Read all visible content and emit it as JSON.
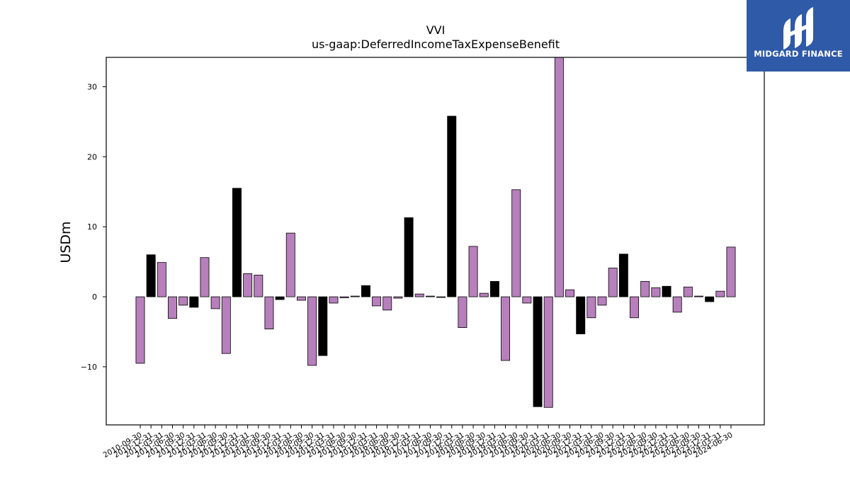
{
  "brand": {
    "name": "MIDGARD FINANCE",
    "bg_color": "#2f5aa8"
  },
  "chart_data": {
    "type": "bar",
    "title": "VVI",
    "subtitle": "us-gaap:DeferredIncomeTaxExpenseBenefit",
    "xlabel": "",
    "ylabel": "USDm",
    "ylim": [
      -18.3,
      34.2
    ],
    "yticks": [
      -10,
      0,
      10,
      20,
      30
    ],
    "ytick_labels": [
      "−10",
      "0",
      "10",
      "20",
      "30"
    ],
    "grid": false,
    "colors": {
      "quarter": "#b77fbc",
      "annual": "#000000"
    },
    "categories": [
      "2010-09-30",
      "2010-12-31",
      "2011-03-31",
      "2011-06-30",
      "2011-09-30",
      "2011-12-31",
      "2012-03-31",
      "2012-06-30",
      "2012-09-30",
      "2012-12-31",
      "2013-03-31",
      "2013-06-30",
      "2013-09-30",
      "2013-12-31",
      "2014-03-31",
      "2014-06-30",
      "2014-09-30",
      "2014-12-31",
      "2015-03-31",
      "2015-06-30",
      "2015-09-30",
      "2015-12-31",
      "2016-03-31",
      "2016-06-30",
      "2016-09-30",
      "2016-12-31",
      "2017-03-31",
      "2017-06-30",
      "2017-09-30",
      "2017-12-31",
      "2018-03-31",
      "2018-06-30",
      "2018-09-30",
      "2018-12-31",
      "2019-03-31",
      "2019-06-30",
      "2019-09-30",
      "2019-12-31",
      "2020-03-31",
      "2020-06-30",
      "2020-09-30",
      "2020-12-31",
      "2021-03-31",
      "2021-06-30",
      "2021-09-30",
      "2021-12-31",
      "2022-03-31",
      "2022-06-30",
      "2022-09-30",
      "2022-12-31",
      "2023-03-31",
      "2023-06-30",
      "2023-09-30",
      "2023-12-31",
      "2024-03-31",
      "2024-06-30"
    ],
    "values": [
      -9.5,
      6.0,
      4.9,
      -3.1,
      -1.2,
      -1.5,
      5.6,
      -1.7,
      -8.1,
      15.5,
      3.3,
      3.1,
      -4.6,
      -0.4,
      9.1,
      -0.5,
      -9.8,
      -8.4,
      -0.9,
      -0.15,
      0.1,
      1.6,
      -1.3,
      -1.9,
      -0.2,
      11.3,
      0.4,
      0.1,
      -0.1,
      25.8,
      -4.4,
      7.2,
      0.5,
      2.2,
      -9.1,
      15.3,
      -0.9,
      -15.7,
      -15.8,
      34.2,
      1.0,
      -5.3,
      -3.0,
      -1.2,
      4.1,
      6.1,
      -3.0,
      2.2,
      1.3,
      1.5,
      -2.2,
      1.4,
      0.1,
      -0.7,
      0.8,
      7.1
    ],
    "annual_flags": [
      false,
      true,
      false,
      false,
      false,
      true,
      false,
      false,
      false,
      true,
      false,
      false,
      false,
      true,
      false,
      false,
      false,
      true,
      false,
      false,
      false,
      true,
      false,
      false,
      false,
      true,
      false,
      false,
      false,
      true,
      false,
      false,
      false,
      true,
      false,
      false,
      false,
      true,
      false,
      false,
      false,
      true,
      false,
      false,
      false,
      true,
      false,
      false,
      false,
      true,
      false,
      false,
      false,
      true,
      false,
      false
    ]
  }
}
